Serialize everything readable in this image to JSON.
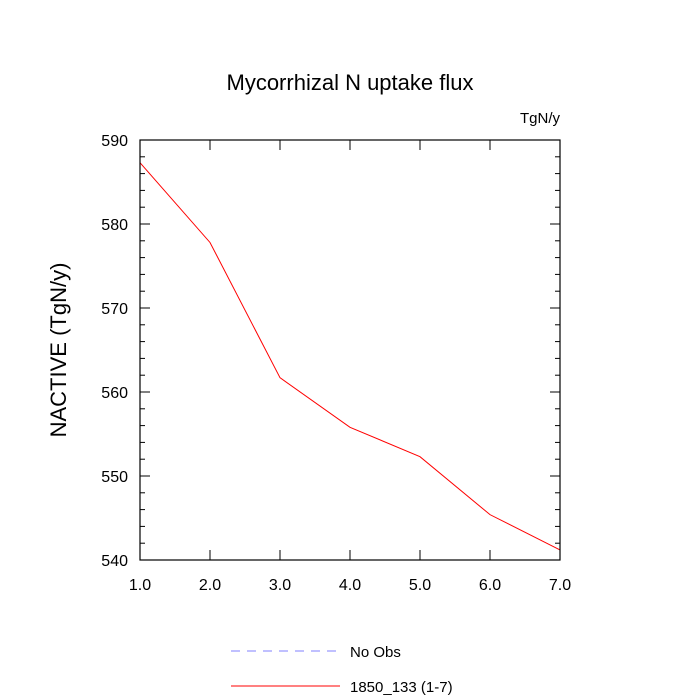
{
  "chart_data": {
    "type": "line",
    "title": "Mycorrhizal N uptake flux",
    "units_label": "TgN/y",
    "xlabel": "",
    "ylabel": "NACTIVE  (TgN/y)",
    "xlim": [
      1.0,
      7.0
    ],
    "ylim": [
      540,
      590
    ],
    "x_ticks": [
      1.0,
      2.0,
      3.0,
      4.0,
      5.0,
      6.0,
      7.0
    ],
    "x_tick_labels": [
      "1.0",
      "2.0",
      "3.0",
      "4.0",
      "5.0",
      "6.0",
      "7.0"
    ],
    "y_ticks": [
      540,
      550,
      560,
      570,
      580,
      590
    ],
    "y_tick_labels": [
      "540",
      "550",
      "560",
      "570",
      "580",
      "590"
    ],
    "grid": false,
    "legend_position": "bottom",
    "series": [
      {
        "name": "No Obs",
        "color": "#8080ff",
        "style": "dashed",
        "x": [],
        "y": []
      },
      {
        "name": "1850_133 (1-7)",
        "color": "#ff0000",
        "style": "solid",
        "x": [
          1.0,
          2.0,
          3.0,
          4.0,
          5.0,
          6.0,
          7.0
        ],
        "y": [
          587.3,
          577.8,
          561.7,
          555.8,
          552.3,
          545.4,
          541.2
        ]
      }
    ]
  }
}
